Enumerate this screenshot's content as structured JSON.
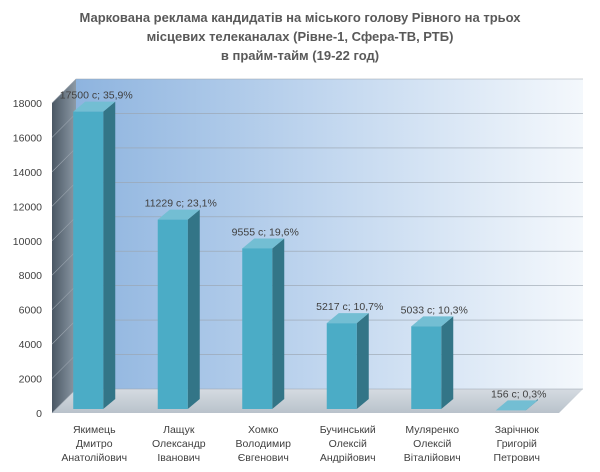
{
  "chart_data": {
    "type": "bar",
    "title": [
      "Маркована реклама кандидатів на міського голову Рівного на трьох",
      "місцевих телеканалах (Рівне-1, Сфера-ТВ, РТБ)",
      "в прайм-тайм (19-22 год)"
    ],
    "categories": [
      [
        "Якимець",
        "Дмитро",
        "Анатолійович"
      ],
      [
        "Лащук",
        "Олександр",
        "Іванович"
      ],
      [
        "Хомко",
        "Володимир",
        "Євгенович"
      ],
      [
        "Бучинський",
        "Олексій",
        "Андрійович"
      ],
      [
        "Муляренко",
        "Олексій",
        "Віталійович"
      ],
      [
        "Зарічнюк",
        "Григорій",
        "Петрович"
      ]
    ],
    "values": [
      17500,
      11229,
      9555,
      5217,
      5033,
      156
    ],
    "data_labels": [
      "17500 с; 35,9%",
      "11229 с; 23,1%",
      "9555 с; 19,6%",
      "5217 с; 10,7%",
      "5033 с; 10,3%",
      "156 с; 0,3%"
    ],
    "yticks": [
      0,
      2000,
      4000,
      6000,
      8000,
      10000,
      12000,
      14000,
      16000,
      18000
    ],
    "ylim": [
      0,
      18000
    ],
    "grid": true,
    "legend": "none",
    "bar_color": "#4bacc6",
    "xlabel": "",
    "ylabel": ""
  }
}
